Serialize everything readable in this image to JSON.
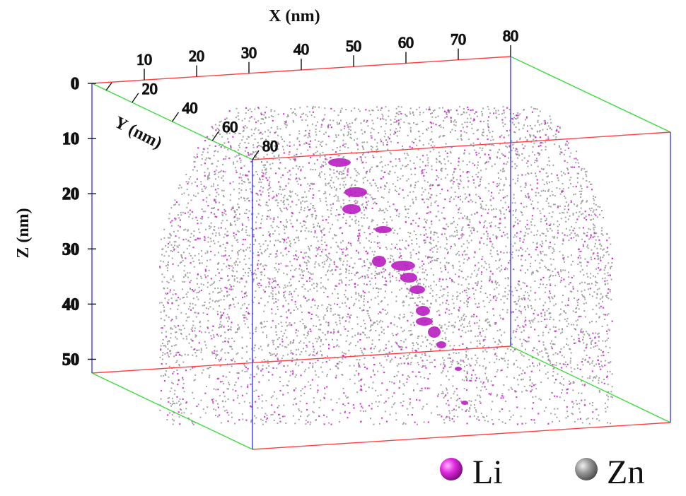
{
  "figure": {
    "x_axis": {
      "title": "X (nm)",
      "ticks": [
        "10",
        "20",
        "30",
        "40",
        "50",
        "60",
        "70",
        "80"
      ]
    },
    "y_axis": {
      "title": "Y (nm)",
      "ticks": [
        "20",
        "40",
        "60",
        "80"
      ]
    },
    "z_axis": {
      "title": "Z (nm)",
      "ticks": [
        "0",
        "10",
        "20",
        "30",
        "40",
        "50"
      ]
    },
    "legend": [
      {
        "label": "Li",
        "color": "#d21fd6",
        "icon": "magenta-sphere-icon"
      },
      {
        "label": "Zn",
        "color": "#8a8a8a",
        "icon": "gray-sphere-icon"
      }
    ],
    "colors": {
      "edge_x": "#ff4040",
      "edge_y": "#3ddb3d",
      "edge_z": "#3a3aff",
      "li": "#d21fd6",
      "zn": "#8c8c8c",
      "li_cluster": "#b81ec0"
    }
  }
}
